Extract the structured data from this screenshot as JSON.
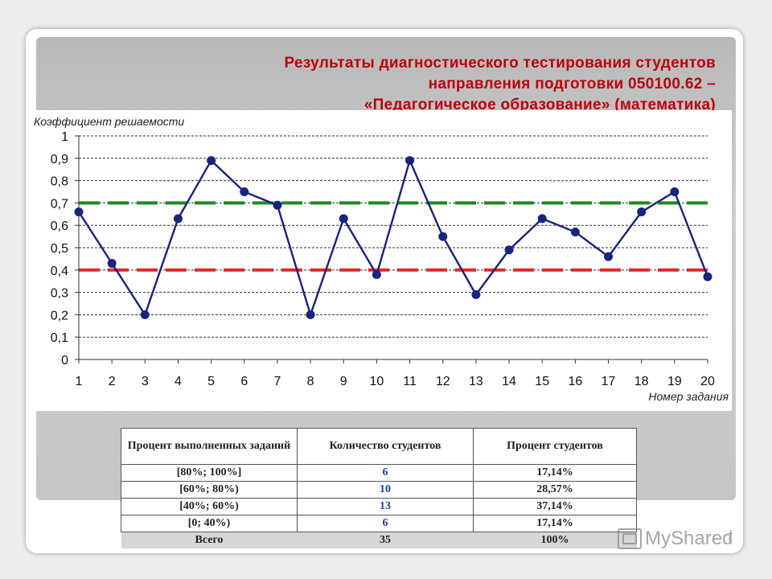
{
  "slide": {
    "title_lines": [
      "Результаты диагностического тестирования студентов",
      "направления подготовки 050100.62 –",
      "«Педагогическое образование» (математика)"
    ],
    "page_number": "7",
    "watermark": "MyShared"
  },
  "chart_data": {
    "type": "line",
    "ylabel": "Коэффициент решаемости",
    "xlabel": "Номер задания",
    "x": [
      1,
      2,
      3,
      4,
      5,
      6,
      7,
      8,
      9,
      10,
      11,
      12,
      13,
      14,
      15,
      16,
      17,
      18,
      19,
      20
    ],
    "series": [
      {
        "values": [
          0.66,
          0.43,
          0.2,
          0.63,
          0.89,
          0.75,
          0.69,
          0.2,
          0.63,
          0.38,
          0.89,
          0.55,
          0.29,
          0.49,
          0.63,
          0.57,
          0.46,
          0.66,
          0.75,
          0.37
        ],
        "color": "#1a237e"
      }
    ],
    "reference_lines": [
      {
        "y": 0.7,
        "color": "#1f8a1f",
        "style": "dashed"
      },
      {
        "y": 0.4,
        "color": "#e0282a",
        "style": "dashed"
      }
    ],
    "ylim": [
      0,
      1
    ],
    "yticks": [
      "0",
      "0,1",
      "0,2",
      "0,3",
      "0,4",
      "0,5",
      "0,6",
      "0,7",
      "0,8",
      "0,9",
      "1"
    ],
    "grid": true
  },
  "table": {
    "headers": [
      "Процент выполненных заданий",
      "Количество студентов",
      "Процент студентов"
    ],
    "rows": [
      {
        "range": "[80%; 100%]",
        "count": "6",
        "percent": "17,14%"
      },
      {
        "range": "[60%; 80%)",
        "count": "10",
        "percent": "28,57%"
      },
      {
        "range": "[40%; 60%)",
        "count": "13",
        "percent": "37,14%"
      },
      {
        "range": "[0; 40%)",
        "count": "6",
        "percent": "17,14%"
      }
    ],
    "total": {
      "label": "Всего",
      "count": "35",
      "percent": "100%"
    }
  }
}
